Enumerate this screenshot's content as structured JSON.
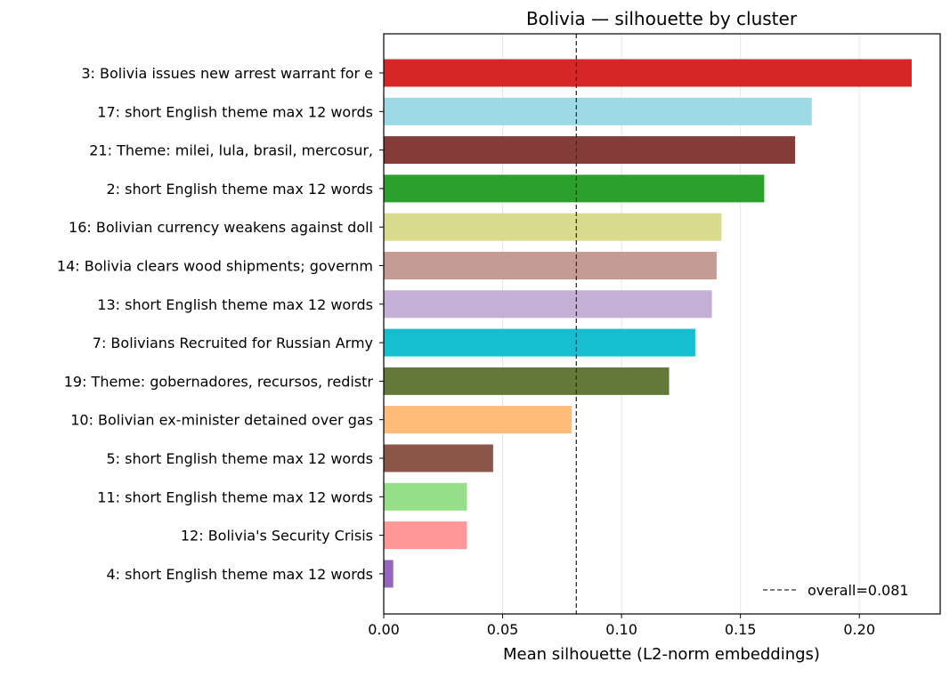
{
  "chart_data": {
    "type": "bar",
    "orientation": "horizontal",
    "title": "Bolivia — silhouette by cluster",
    "xlabel": "Mean silhouette (L2-norm embeddings)",
    "ylabel": "",
    "xlim": [
      0.0,
      0.234
    ],
    "xticks": [
      "0.00",
      "0.05",
      "0.10",
      "0.15",
      "0.20"
    ],
    "xtick_values": [
      0.0,
      0.05,
      0.1,
      0.15,
      0.2
    ],
    "grid": "vertical",
    "legend_placement": "lower-right",
    "categories": [
      "3: Bolivia issues new arrest warrant for e",
      "17: short English theme max 12 words",
      "21: Theme: milei, lula, brasil, mercosur, ",
      "2: short English theme max 12 words",
      "16: Bolivian currency weakens against doll",
      "14: Bolivia clears wood shipments; governm",
      "13: short English theme max 12 words",
      "7: Bolivians Recruited for Russian Army",
      "19: Theme: gobernadores, recursos, redistr",
      "10: Bolivian ex-minister detained over gas",
      "5: short English theme max 12 words",
      "11: short English theme max 12 words",
      "12: Bolivia's Security Crisis",
      "4: short English theme max 12 words"
    ],
    "values": [
      0.222,
      0.18,
      0.173,
      0.16,
      0.142,
      0.14,
      0.138,
      0.131,
      0.12,
      0.079,
      0.046,
      0.035,
      0.035,
      0.004
    ],
    "colors": [
      "#d62728",
      "#9edae5",
      "#843c39",
      "#2ca02c",
      "#dbdb8d",
      "#c49c94",
      "#c5b0d5",
      "#17becf",
      "#637939",
      "#ffbb78",
      "#8c564b",
      "#98df8a",
      "#ff9896",
      "#9467bd"
    ],
    "reference_line": {
      "value": 0.081,
      "label": "overall=0.081",
      "style": "dashed",
      "color": "#333333"
    }
  }
}
